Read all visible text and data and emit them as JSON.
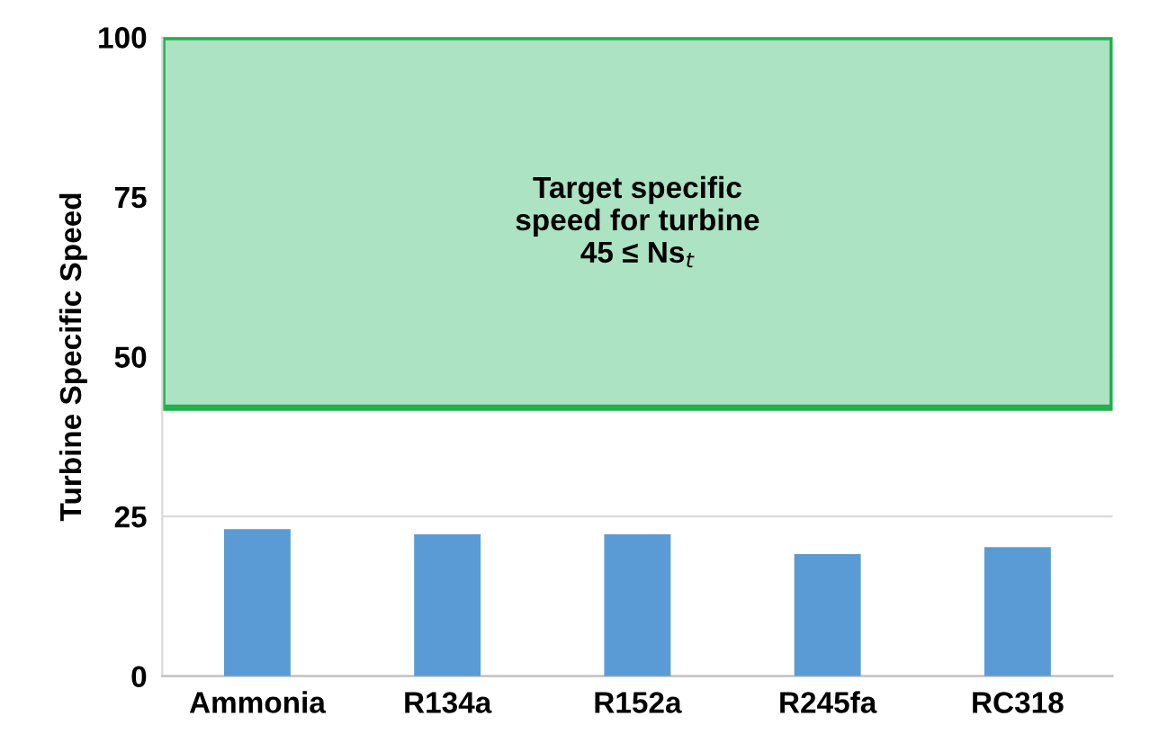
{
  "chart_data": {
    "type": "bar",
    "ylabel": "Turbine Specific Speed",
    "categories": [
      "Ammonia",
      "R134a",
      "R152a",
      "R245fa",
      "RC318"
    ],
    "values": [
      23.0,
      22.2,
      22.2,
      19.1,
      20.2
    ],
    "color": "#5b9bd5",
    "ylim": [
      0,
      100
    ],
    "yticks": [
      0,
      25,
      50,
      75,
      100
    ],
    "grid": "y",
    "bands": [
      {
        "axis": "y",
        "from": 42,
        "to": 100,
        "label": "Target specific\nspeed for turbine\n45 ≤ Ns$_{t}$",
        "color": "#abe3c3"
      }
    ]
  }
}
